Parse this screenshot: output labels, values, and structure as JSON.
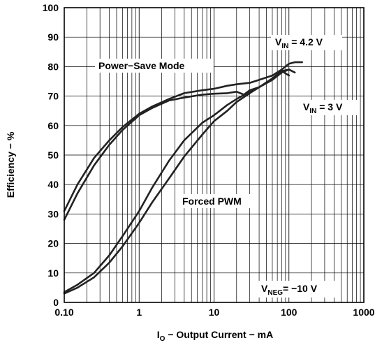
{
  "chart_data": {
    "type": "line",
    "x_scale": "log",
    "xlim": [
      0.1,
      1000
    ],
    "ylim": [
      0,
      100
    ],
    "grid": true,
    "xlabel": {
      "main": "I",
      "sub": "O",
      "rest": " − Output Current − mA"
    },
    "ylabel": "Efficiency − %",
    "x_tick_labels": [
      "0.10",
      "1",
      "10",
      "100",
      "1000"
    ],
    "x_ticks": [
      0.1,
      1,
      10,
      100,
      1000
    ],
    "y_ticks": [
      0,
      10,
      20,
      30,
      40,
      50,
      60,
      70,
      80,
      90,
      100
    ],
    "y_tick_labels": [
      "0",
      "10",
      "20",
      "30",
      "40",
      "50",
      "60",
      "70",
      "80",
      "90",
      "100"
    ],
    "annotations": {
      "power_save": "Power−Save Mode",
      "forced_pwm": "Forced PWM",
      "vin_42": {
        "main": "V",
        "sub": "IN",
        "rest": " = 4.2 V"
      },
      "vin_3": {
        "main": "V",
        "sub": "IN",
        "rest": " = 3 V"
      },
      "vneg": {
        "main": "V",
        "sub": "NEG",
        "rest": "= −10 V"
      }
    },
    "series": [
      {
        "mode": "power-save",
        "vin": "4.2 V",
        "x": [
          0.1,
          0.15,
          0.25,
          0.4,
          0.6,
          1,
          1.5,
          2.5,
          4,
          7,
          10,
          15,
          20,
          30,
          40,
          60,
          80,
          100,
          120,
          150
        ],
        "y": [
          31,
          40,
          49,
          55,
          59.5,
          64,
          66.5,
          69,
          71,
          72,
          72.5,
          73.5,
          74,
          74.5,
          75.5,
          77,
          79,
          81,
          81.5,
          81.5
        ]
      },
      {
        "mode": "power-save",
        "vin": "3 V",
        "x": [
          0.1,
          0.15,
          0.25,
          0.4,
          0.6,
          1,
          1.5,
          2.5,
          4,
          7,
          10,
          15,
          20,
          25,
          30,
          40,
          60,
          80,
          100
        ],
        "y": [
          28,
          37,
          46.5,
          53.5,
          58.5,
          63.5,
          66,
          68.5,
          69.5,
          70.5,
          70.8,
          71,
          71.5,
          70.5,
          72,
          73,
          76,
          78.5,
          77
        ]
      },
      {
        "mode": "forced-pwm",
        "vin": "4.2 V",
        "x": [
          0.1,
          0.15,
          0.25,
          0.4,
          0.6,
          1,
          1.5,
          2.5,
          4,
          7,
          10,
          15,
          20,
          30,
          40,
          60,
          80,
          100,
          120
        ],
        "y": [
          3.5,
          6,
          10,
          16,
          22.5,
          31,
          39,
          48,
          55,
          61,
          63.5,
          67,
          69,
          71.5,
          73,
          75.5,
          78,
          79,
          78
        ]
      },
      {
        "mode": "forced-pwm",
        "vin": "3 V",
        "x": [
          0.1,
          0.15,
          0.25,
          0.4,
          0.6,
          1,
          1.5,
          2.5,
          4,
          7,
          10,
          15,
          20,
          30,
          40,
          60,
          80,
          100
        ],
        "y": [
          3,
          5,
          8.5,
          13.5,
          19,
          27,
          34,
          42,
          49.5,
          57,
          61.5,
          65,
          68,
          71,
          73,
          76,
          78.5,
          79
        ]
      }
    ]
  }
}
